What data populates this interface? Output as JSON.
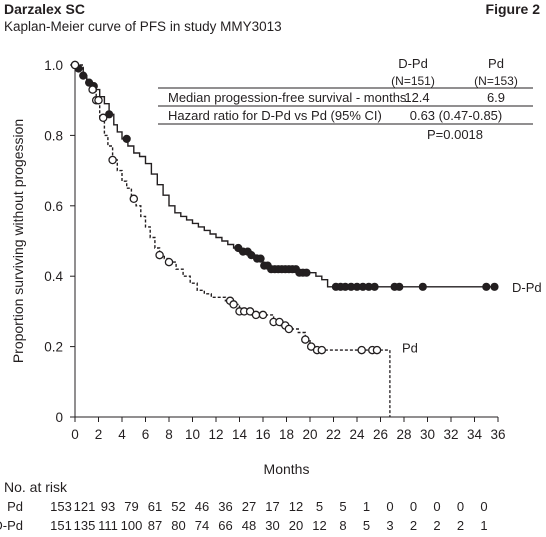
{
  "header": {
    "product": "Darzalex SC",
    "figure_label": "Figure 2",
    "subtitle": "Kaplan-Meier curve of PFS in study MMY3013"
  },
  "chart_data": {
    "type": "line",
    "title": "Kaplan-Meier curve of PFS in study MMY3013",
    "xlabel": "Months",
    "ylabel": "Proportion surviving without progession",
    "xlim": [
      0,
      36
    ],
    "ylim": [
      0,
      1.0
    ],
    "x_ticks": [
      0,
      2,
      4,
      6,
      8,
      10,
      12,
      14,
      16,
      18,
      20,
      22,
      24,
      26,
      28,
      30,
      32,
      34,
      36
    ],
    "y_ticks": [
      {
        "value": 0,
        "label": "0"
      },
      {
        "value": 0.2,
        "label": "0.2"
      },
      {
        "value": 0.4,
        "label": "0.4"
      },
      {
        "value": 0.6,
        "label": "0.6"
      },
      {
        "value": 0.8,
        "label": "0.8"
      },
      {
        "value": 1.0,
        "label": "1.0"
      }
    ],
    "series": [
      {
        "name": "D-Pd",
        "color": "#231f20",
        "line_style": "solid",
        "marker": "filled-circle",
        "x": [
          0,
          0.3,
          0.7,
          1.0,
          1.3,
          1.7,
          2.1,
          2.5,
          2.9,
          3.3,
          3.6,
          4.0,
          4.5,
          5.0,
          5.5,
          6.0,
          6.5,
          7.0,
          7.5,
          8.0,
          8.5,
          9.0,
          9.5,
          10.0,
          10.5,
          11.0,
          11.5,
          12.0,
          12.5,
          13.0,
          13.5,
          14.0,
          14.5,
          15.0,
          15.5,
          16.0,
          16.5,
          17.0,
          17.5,
          18.0,
          18.5,
          19.0,
          19.5,
          20.0,
          20.5,
          21.0,
          21.5,
          36.0
        ],
        "y": [
          1.0,
          0.99,
          0.97,
          0.95,
          0.94,
          0.93,
          0.91,
          0.89,
          0.86,
          0.83,
          0.81,
          0.79,
          0.77,
          0.75,
          0.74,
          0.72,
          0.69,
          0.66,
          0.63,
          0.6,
          0.58,
          0.57,
          0.56,
          0.55,
          0.54,
          0.53,
          0.52,
          0.51,
          0.5,
          0.49,
          0.48,
          0.47,
          0.47,
          0.46,
          0.45,
          0.43,
          0.42,
          0.42,
          0.42,
          0.42,
          0.42,
          0.41,
          0.41,
          0.41,
          0.4,
          0.39,
          0.37,
          0.37
        ],
        "censored_x": [
          0.3,
          0.7,
          1.2,
          1.6,
          2.9,
          4.4,
          13.9,
          14.3,
          14.7,
          15.0,
          15.5,
          15.8,
          16.1,
          16.4,
          16.7,
          17.0,
          17.3,
          17.6,
          17.9,
          18.2,
          18.5,
          18.8,
          19.1,
          19.4,
          19.7,
          22.2,
          22.6,
          23.0,
          23.5,
          24.0,
          24.5,
          25.0,
          25.5,
          27.2,
          27.6,
          29.6,
          35.0,
          35.7
        ]
      },
      {
        "name": "Pd",
        "color": "#231f20",
        "line_style": "dashed",
        "marker": "open-circle",
        "x": [
          0,
          0.7,
          1.0,
          1.5,
          1.8,
          2.1,
          2.5,
          2.8,
          3.2,
          3.6,
          4.0,
          4.4,
          4.8,
          5.2,
          5.6,
          6.0,
          6.4,
          6.8,
          7.2,
          7.6,
          8.0,
          8.6,
          9.2,
          9.8,
          10.4,
          11.0,
          11.6,
          12.2,
          12.8,
          13.4,
          14.0,
          15.0,
          16.0,
          16.9,
          17.5,
          18.2,
          19.0,
          19.6,
          20.0,
          20.4,
          26.8
        ],
        "y": [
          1.0,
          0.97,
          0.95,
          0.93,
          0.9,
          0.85,
          0.8,
          0.77,
          0.73,
          0.7,
          0.67,
          0.65,
          0.62,
          0.6,
          0.57,
          0.54,
          0.51,
          0.48,
          0.46,
          0.45,
          0.44,
          0.42,
          0.4,
          0.38,
          0.36,
          0.35,
          0.34,
          0.34,
          0.33,
          0.32,
          0.3,
          0.29,
          0.29,
          0.27,
          0.26,
          0.25,
          0.24,
          0.22,
          0.2,
          0.19,
          0.19
        ],
        "censored_x": [
          1.5,
          1.8,
          2.0,
          2.4,
          3.2,
          5.0,
          7.2,
          8.0,
          13.2,
          13.5,
          14.0,
          14.4,
          14.9,
          15.4,
          16.0,
          16.9,
          17.4,
          17.9,
          18.2,
          19.6,
          20.1,
          20.6,
          21.0,
          24.4,
          25.3,
          25.7
        ]
      }
    ],
    "end_labels": [
      "D-Pd",
      "Pd"
    ],
    "drop_line": {
      "x": 26.8,
      "from_y": 0.19,
      "to_y": 0
    },
    "stats_table": {
      "columns": [
        {
          "line1": "D-Pd",
          "line2": "(N=151)"
        },
        {
          "line1": "Pd",
          "line2": "(N=153)"
        }
      ],
      "rows": [
        {
          "label": "Median progession-free survival - months",
          "d_pd": "12.4",
          "pd": "6.9"
        },
        {
          "label": "Hazard ratio for D-Pd vs Pd (95% CI)",
          "value": "0.63 (0.47-0.85)"
        }
      ],
      "p_value": "P=0.0018"
    },
    "risk_table": {
      "title": "No. at risk",
      "rows": [
        {
          "label": "Pd",
          "values": [
            "153",
            "121",
            "93",
            "79",
            "61",
            "52",
            "46",
            "36",
            "27",
            "17",
            "12",
            "5",
            "5",
            "1",
            "0",
            "0",
            "0",
            "0",
            "0"
          ]
        },
        {
          "label": "D-Pd",
          "values": [
            "151",
            "135",
            "111",
            "100",
            "87",
            "80",
            "74",
            "66",
            "48",
            "30",
            "20",
            "12",
            "8",
            "5",
            "3",
            "2",
            "2",
            "2",
            "1"
          ]
        }
      ]
    }
  }
}
